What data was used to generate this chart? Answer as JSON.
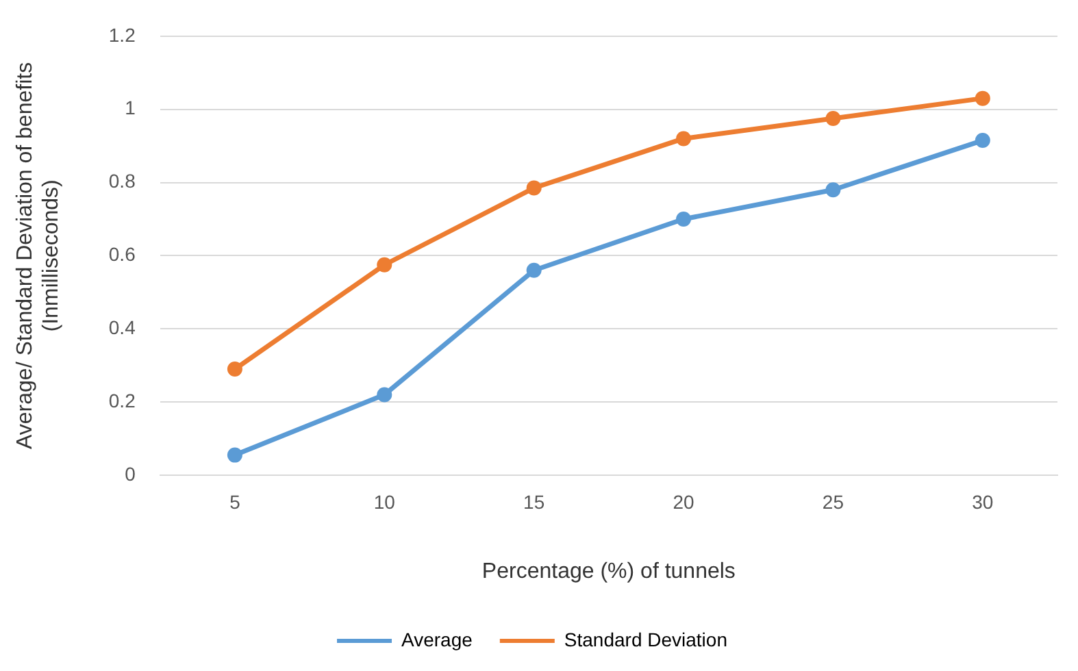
{
  "chart_data": {
    "type": "line",
    "xlabel": "Percentage (%) of tunnels",
    "ylabel": "Average/ Standard Deviation of benefits\n(Inmilliseconds)",
    "categories": [
      "5",
      "10",
      "15",
      "20",
      "25",
      "30"
    ],
    "series": [
      {
        "name": "Average",
        "color": "#5b9bd5",
        "values": [
          0.055,
          0.22,
          0.56,
          0.7,
          0.78,
          0.915
        ]
      },
      {
        "name": "Standard Deviation",
        "color": "#ed7d31",
        "values": [
          0.29,
          0.575,
          0.785,
          0.92,
          0.975,
          1.03
        ]
      }
    ],
    "ylim": [
      0,
      1.2
    ],
    "yticks": [
      0,
      0.2,
      0.4,
      0.6,
      0.8,
      1,
      1.2
    ],
    "grid": "y",
    "legend": "bottom",
    "marker": "circle",
    "line_style": "solid"
  }
}
